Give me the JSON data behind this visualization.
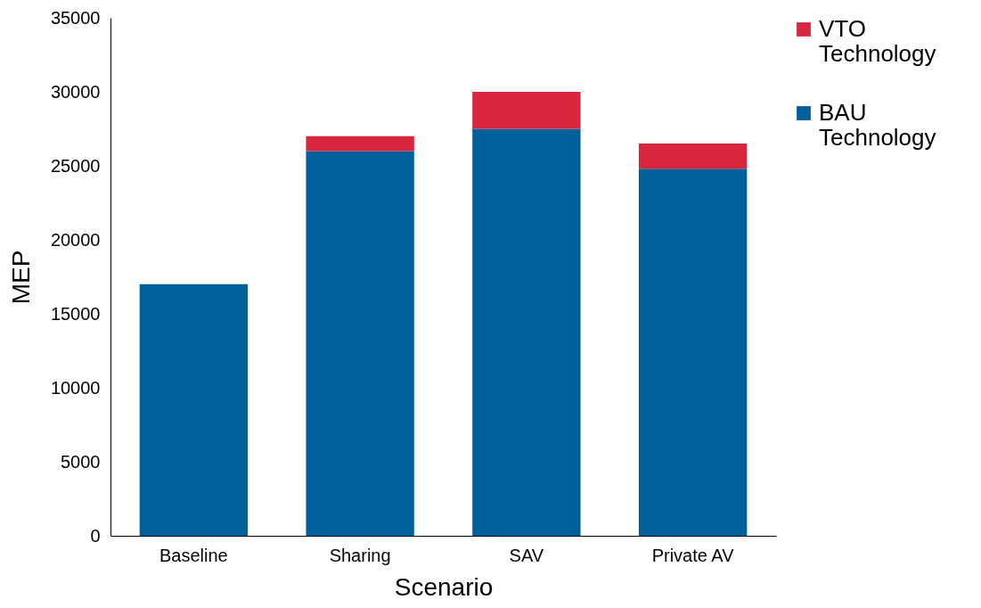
{
  "chart_data": {
    "type": "bar",
    "xlabel": "Scenario",
    "ylabel": "MEP",
    "categories": [
      "Baseline",
      "Sharing",
      "SAV",
      "Private AV"
    ],
    "stacked": true,
    "series": [
      {
        "name": "BAU Technology",
        "color": "#00609c",
        "values": [
          17000,
          26000,
          27500,
          24800
        ]
      },
      {
        "name": "VTO Technology",
        "color": "#d7263d",
        "values": [
          null,
          1000,
          2500,
          1700
        ]
      }
    ],
    "ylim": [
      0,
      35000
    ],
    "yticks": [
      0,
      5000,
      10000,
      15000,
      20000,
      25000,
      30000,
      35000
    ],
    "grid": false,
    "legend": "right"
  }
}
